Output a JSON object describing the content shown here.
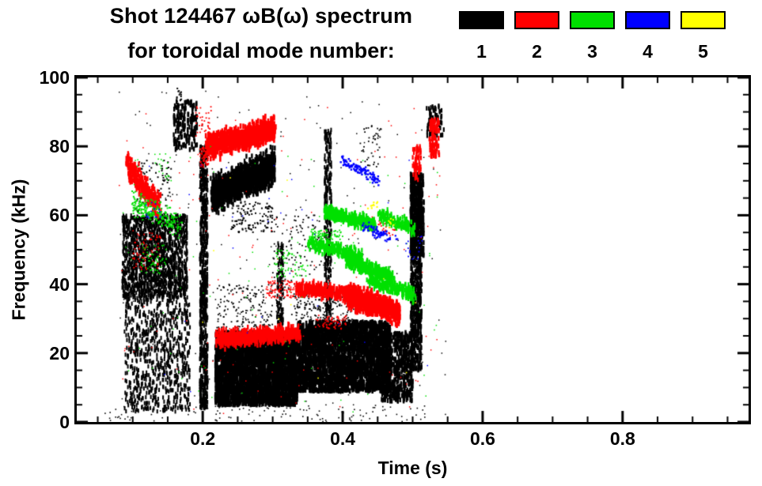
{
  "title": {
    "line1": "Shot 124467 ωB(ω) spectrum",
    "line2": "for toroidal mode number:"
  },
  "legend": [
    {
      "label": "1",
      "color": "#000000"
    },
    {
      "label": "2",
      "color": "#ff0000"
    },
    {
      "label": "3",
      "color": "#00e000"
    },
    {
      "label": "4",
      "color": "#0000ff"
    },
    {
      "label": "5",
      "color": "#ffff00"
    }
  ],
  "chart_data": {
    "type": "scatter",
    "title": "Shot 124467 ωB(ω) spectrum for toroidal mode number: 1-5",
    "xlabel": "Time (s)",
    "ylabel": "Frequency (kHz)",
    "xlim": [
      0.02,
      0.98
    ],
    "ylim": [
      0,
      100
    ],
    "xticks": [
      0.2,
      0.4,
      0.6,
      0.8
    ],
    "xtick_labels": [
      "0.2",
      "0.4",
      "0.6",
      "0.8"
    ],
    "yticks": [
      0,
      20,
      40,
      60,
      80,
      100
    ],
    "ytick_labels": [
      "0",
      "20",
      "40",
      "60",
      "80",
      "100"
    ],
    "x_minor_step": 0.05,
    "y_minor_step": 5,
    "grid": false,
    "legend_position": "top-right",
    "clusters_encoding": "mode = toroidal mode number (color from legend); type scatter = uniform box, arc = band along line from (t0,f0) to (t1,f1); t in s, f in kHz; n points; s dot size px; w band half-thickness kHz; shape dash = short vertical dash, dot = square point",
    "clusters": [
      {
        "mode": 1,
        "type": "scatter",
        "t": [
          0.085,
          0.178
        ],
        "f": [
          36,
          60
        ],
        "n": 1500,
        "s": 2,
        "shape": "dash"
      },
      {
        "mode": 1,
        "type": "scatter",
        "t": [
          0.088,
          0.182
        ],
        "f": [
          3,
          36
        ],
        "n": 750,
        "s": 2,
        "shape": "dash"
      },
      {
        "mode": 1,
        "type": "scatter",
        "t": [
          0.1,
          0.155
        ],
        "f": [
          60,
          76
        ],
        "n": 90,
        "s": 2,
        "shape": "dot"
      },
      {
        "mode": 1,
        "type": "scatter",
        "t": [
          0.158,
          0.192
        ],
        "f": [
          79,
          93
        ],
        "n": 160,
        "s": 2.4,
        "shape": "dash"
      },
      {
        "mode": 1,
        "type": "scatter",
        "t": [
          0.162,
          0.17
        ],
        "f": [
          88,
          97
        ],
        "n": 25,
        "s": 2,
        "shape": "dot"
      },
      {
        "mode": 1,
        "type": "scatter",
        "t": [
          0.196,
          0.207
        ],
        "f": [
          4,
          80
        ],
        "n": 650,
        "s": 2.2,
        "shape": "dash"
      },
      {
        "mode": 1,
        "type": "arc",
        "t": [
          0.214,
          0.302
        ],
        "f": [
          66,
          74
        ],
        "w": 4.5,
        "n": 1700,
        "s": 2.4,
        "shape": "dash"
      },
      {
        "mode": 1,
        "type": "scatter",
        "t": [
          0.218,
          0.335
        ],
        "f": [
          5,
          26
        ],
        "n": 3200,
        "s": 2.6,
        "shape": "dash"
      },
      {
        "mode": 1,
        "type": "scatter",
        "t": [
          0.335,
          0.468
        ],
        "f": [
          9,
          29
        ],
        "n": 2700,
        "s": 2.6,
        "shape": "dash"
      },
      {
        "mode": 1,
        "type": "scatter",
        "t": [
          0.306,
          0.315
        ],
        "f": [
          5,
          52
        ],
        "n": 200,
        "s": 2,
        "shape": "dash"
      },
      {
        "mode": 1,
        "type": "scatter",
        "t": [
          0.374,
          0.384
        ],
        "f": [
          25,
          85
        ],
        "n": 300,
        "s": 2,
        "shape": "dash"
      },
      {
        "mode": 1,
        "type": "scatter",
        "t": [
          0.3,
          0.37
        ],
        "f": [
          30,
          60
        ],
        "n": 150,
        "s": 1.8,
        "shape": "dot"
      },
      {
        "mode": 1,
        "type": "scatter",
        "t": [
          0.455,
          0.5
        ],
        "f": [
          6,
          26
        ],
        "n": 550,
        "s": 2.4,
        "shape": "dash"
      },
      {
        "mode": 1,
        "type": "scatter",
        "t": [
          0.497,
          0.513
        ],
        "f": [
          15,
          72
        ],
        "n": 750,
        "s": 2.2,
        "shape": "dash"
      },
      {
        "mode": 1,
        "type": "scatter",
        "t": [
          0.497,
          0.516
        ],
        "f": [
          48,
          72
        ],
        "n": 350,
        "s": 2.4,
        "shape": "dash"
      },
      {
        "mode": 1,
        "type": "scatter",
        "t": [
          0.52,
          0.545
        ],
        "f": [
          83,
          92
        ],
        "n": 70,
        "s": 2.2,
        "shape": "dash"
      },
      {
        "mode": 1,
        "type": "scatter",
        "t": [
          0.06,
          0.52
        ],
        "f": [
          0,
          5
        ],
        "n": 110,
        "s": 1.6,
        "shape": "dot"
      },
      {
        "mode": 1,
        "type": "scatter",
        "t": [
          0.08,
          0.55
        ],
        "f": [
          2,
          96
        ],
        "n": 220,
        "s": 1.5,
        "shape": "dot"
      },
      {
        "mode": 1,
        "type": "scatter",
        "t": [
          0.425,
          0.455
        ],
        "f": [
          74,
          86
        ],
        "n": 45,
        "s": 1.8,
        "shape": "dot"
      },
      {
        "mode": 1,
        "type": "scatter",
        "t": [
          0.22,
          0.3
        ],
        "f": [
          26,
          40
        ],
        "n": 180,
        "s": 1.8,
        "shape": "dot"
      },
      {
        "mode": 1,
        "type": "scatter",
        "t": [
          0.33,
          0.42
        ],
        "f": [
          29,
          38
        ],
        "n": 160,
        "s": 1.8,
        "shape": "dot"
      },
      {
        "mode": 1,
        "type": "scatter",
        "t": [
          0.24,
          0.3
        ],
        "f": [
          55,
          64
        ],
        "n": 120,
        "s": 2,
        "shape": "dot"
      },
      {
        "mode": 2,
        "type": "arc",
        "t": [
          0.091,
          0.138
        ],
        "f": [
          75,
          62
        ],
        "w": 3.5,
        "n": 320,
        "s": 2.3,
        "shape": "dash"
      },
      {
        "mode": 2,
        "type": "scatter",
        "t": [
          0.1,
          0.14
        ],
        "f": [
          44,
          55
        ],
        "n": 70,
        "s": 1.8,
        "shape": "dot"
      },
      {
        "mode": 2,
        "type": "arc",
        "t": [
          0.207,
          0.302
        ],
        "f": [
          80,
          85
        ],
        "w": 3.2,
        "n": 950,
        "s": 2.6,
        "shape": "dash"
      },
      {
        "mode": 2,
        "type": "scatter",
        "t": [
          0.196,
          0.208
        ],
        "f": [
          74,
          80
        ],
        "n": 60,
        "s": 2,
        "shape": "dot"
      },
      {
        "mode": 2,
        "type": "arc",
        "t": [
          0.221,
          0.338
        ],
        "f": [
          24,
          26
        ],
        "w": 2.2,
        "n": 650,
        "s": 2.4,
        "shape": "dash"
      },
      {
        "mode": 2,
        "type": "arc",
        "t": [
          0.335,
          0.405
        ],
        "f": [
          39,
          37
        ],
        "w": 2.2,
        "n": 320,
        "s": 2.3,
        "shape": "dash"
      },
      {
        "mode": 2,
        "type": "arc",
        "t": [
          0.405,
          0.48
        ],
        "f": [
          37,
          31.5
        ],
        "w": 3,
        "n": 750,
        "s": 2.8,
        "shape": "dash"
      },
      {
        "mode": 2,
        "type": "scatter",
        "t": [
          0.29,
          0.335
        ],
        "f": [
          36,
          41
        ],
        "n": 90,
        "s": 1.8,
        "shape": "dot"
      },
      {
        "mode": 2,
        "type": "scatter",
        "t": [
          0.36,
          0.405
        ],
        "f": [
          27,
          31
        ],
        "n": 70,
        "s": 1.8,
        "shape": "dot"
      },
      {
        "mode": 2,
        "type": "scatter",
        "t": [
          0.5,
          0.512
        ],
        "f": [
          70,
          80
        ],
        "n": 60,
        "s": 2.2,
        "shape": "dash"
      },
      {
        "mode": 2,
        "type": "scatter",
        "t": [
          0.524,
          0.538
        ],
        "f": [
          77,
          88
        ],
        "n": 90,
        "s": 2.4,
        "shape": "dash"
      },
      {
        "mode": 2,
        "type": "scatter",
        "t": [
          0.19,
          0.212
        ],
        "f": [
          83,
          92
        ],
        "n": 35,
        "s": 1.8,
        "shape": "dot"
      },
      {
        "mode": 2,
        "type": "scatter",
        "t": [
          0.08,
          0.54
        ],
        "f": [
          2,
          92
        ],
        "n": 140,
        "s": 1.5,
        "shape": "dot"
      },
      {
        "mode": 2,
        "type": "scatter",
        "t": [
          0.44,
          0.475
        ],
        "f": [
          54,
          60
        ],
        "n": 40,
        "s": 1.8,
        "shape": "dot"
      },
      {
        "mode": 3,
        "type": "arc",
        "t": [
          0.1,
          0.168
        ],
        "f": [
          64,
          57
        ],
        "w": 3.5,
        "n": 230,
        "s": 2,
        "shape": "dot"
      },
      {
        "mode": 3,
        "type": "scatter",
        "t": [
          0.112,
          0.148
        ],
        "f": [
          43,
          52
        ],
        "n": 55,
        "s": 1.8,
        "shape": "dot"
      },
      {
        "mode": 3,
        "type": "arc",
        "t": [
          0.374,
          0.447
        ],
        "f": [
          61,
          57
        ],
        "w": 1.8,
        "n": 380,
        "s": 2.4,
        "shape": "dash"
      },
      {
        "mode": 3,
        "type": "arc",
        "t": [
          0.352,
          0.428
        ],
        "f": [
          52,
          48
        ],
        "w": 1.8,
        "n": 280,
        "s": 2.2,
        "shape": "dash"
      },
      {
        "mode": 3,
        "type": "arc",
        "t": [
          0.404,
          0.472
        ],
        "f": [
          47,
          42
        ],
        "w": 1.8,
        "n": 320,
        "s": 2.4,
        "shape": "dash"
      },
      {
        "mode": 3,
        "type": "arc",
        "t": [
          0.437,
          0.502
        ],
        "f": [
          41.5,
          37
        ],
        "w": 1.8,
        "n": 260,
        "s": 2.3,
        "shape": "dash"
      },
      {
        "mode": 3,
        "type": "arc",
        "t": [
          0.452,
          0.502
        ],
        "f": [
          60,
          56
        ],
        "w": 2,
        "n": 150,
        "s": 2.2,
        "shape": "dash"
      },
      {
        "mode": 3,
        "type": "scatter",
        "t": [
          0.355,
          0.4
        ],
        "f": [
          53,
          56
        ],
        "n": 70,
        "s": 1.8,
        "shape": "dot"
      },
      {
        "mode": 3,
        "type": "scatter",
        "t": [
          0.3,
          0.35
        ],
        "f": [
          42,
          50
        ],
        "n": 60,
        "s": 1.8,
        "shape": "dot"
      },
      {
        "mode": 3,
        "type": "scatter",
        "t": [
          0.08,
          0.54
        ],
        "f": [
          2,
          80
        ],
        "n": 90,
        "s": 1.5,
        "shape": "dot"
      },
      {
        "mode": 3,
        "type": "scatter",
        "t": [
          0.13,
          0.155
        ],
        "f": [
          70,
          78
        ],
        "n": 20,
        "s": 1.6,
        "shape": "dot"
      },
      {
        "mode": 4,
        "type": "arc",
        "t": [
          0.398,
          0.452
        ],
        "f": [
          76,
          70
        ],
        "w": 1.5,
        "n": 110,
        "s": 2.4,
        "shape": "dot"
      },
      {
        "mode": 4,
        "type": "arc",
        "t": [
          0.428,
          0.478
        ],
        "f": [
          57,
          53
        ],
        "w": 1.5,
        "n": 80,
        "s": 2.2,
        "shape": "dot"
      },
      {
        "mode": 4,
        "type": "scatter",
        "t": [
          0.115,
          0.14
        ],
        "f": [
          59,
          64
        ],
        "n": 14,
        "s": 1.8,
        "shape": "dot"
      },
      {
        "mode": 4,
        "type": "scatter",
        "t": [
          0.49,
          0.515
        ],
        "f": [
          47,
          54
        ],
        "n": 16,
        "s": 1.8,
        "shape": "dot"
      },
      {
        "mode": 4,
        "type": "scatter",
        "t": [
          0.12,
          0.54
        ],
        "f": [
          8,
          80
        ],
        "n": 28,
        "s": 1.5,
        "shape": "dot"
      },
      {
        "mode": 5,
        "type": "scatter",
        "t": [
          0.436,
          0.452
        ],
        "f": [
          60,
          64
        ],
        "n": 10,
        "s": 2.2,
        "shape": "dot"
      },
      {
        "mode": 5,
        "type": "scatter",
        "t": [
          0.464,
          0.48
        ],
        "f": [
          56,
          59
        ],
        "n": 8,
        "s": 2,
        "shape": "dot"
      },
      {
        "mode": 5,
        "type": "scatter",
        "t": [
          0.2,
          0.52
        ],
        "f": [
          5,
          78
        ],
        "n": 10,
        "s": 1.6,
        "shape": "dot"
      }
    ]
  }
}
